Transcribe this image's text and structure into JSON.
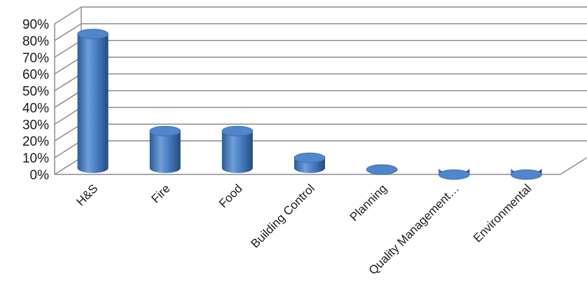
{
  "chart_data": {
    "type": "bar",
    "style": "3d-cylinder",
    "categories": [
      "H&S",
      "Fire",
      "Food",
      "Building Control",
      "Planning",
      "Quality Management…",
      "Environmental"
    ],
    "series": [
      {
        "values": [
          86,
          28,
          28,
          12,
          5,
          2,
          2
        ]
      }
    ],
    "title": "",
    "xlabel": "",
    "ylabel": "",
    "ylim": [
      0,
      90
    ],
    "yticks": [
      0,
      10,
      20,
      30,
      40,
      50,
      60,
      70,
      80,
      90
    ],
    "ytick_labels": [
      "0%",
      "10%",
      "20%",
      "30%",
      "40%",
      "50%",
      "60%",
      "70%",
      "80%",
      "90%"
    ],
    "grid": true,
    "legend": "none",
    "bar_color": "#3f72b6",
    "grid_color": "#8c8c8c"
  }
}
